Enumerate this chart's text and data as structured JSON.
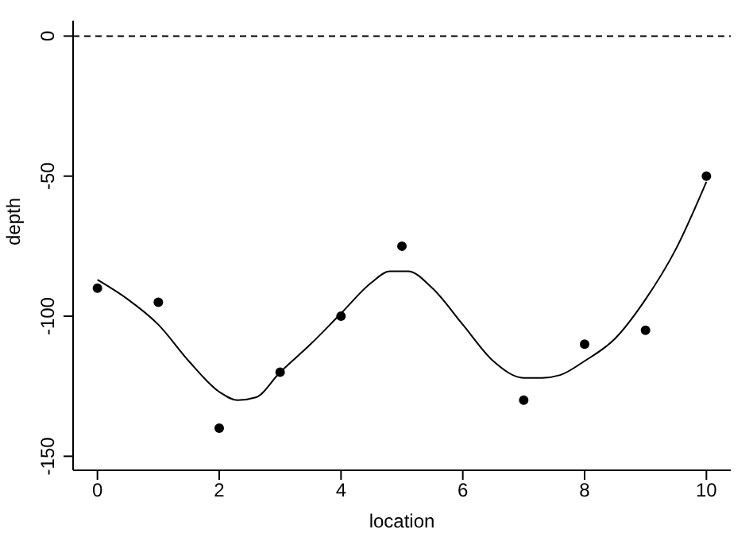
{
  "chart_data": {
    "type": "scatter",
    "xlabel": "location",
    "ylabel": "depth",
    "xlim": [
      -0.4,
      10.4
    ],
    "ylim": [
      -155,
      5.5
    ],
    "xticks": [
      0,
      2,
      4,
      6,
      8,
      10
    ],
    "yticks": [
      -150,
      -100,
      -50,
      0
    ],
    "grid": false,
    "legend": false,
    "marker": "circle",
    "series": [
      {
        "color": "#000000",
        "x": [
          0,
          1,
          2,
          3,
          4,
          5,
          7,
          8,
          9,
          10
        ],
        "values": [
          -90,
          -95,
          -140,
          -120,
          -100,
          -75,
          -130,
          -110,
          -105,
          -50
        ]
      },
      {
        "type": "line",
        "color": "#000000",
        "marker": "none",
        "x": [
          0,
          0.5,
          1,
          1.5,
          2,
          2.3,
          2.6,
          3,
          3.5,
          4,
          4.5,
          4.8,
          5.1,
          5.5,
          6,
          6.5,
          7,
          7.3,
          7.6,
          8,
          8.5,
          9,
          9.5,
          10
        ],
        "values": [
          -87,
          -94,
          -103,
          -116,
          -127,
          -130,
          -129,
          -120,
          -110,
          -99,
          -88,
          -84,
          -84,
          -90,
          -103,
          -116,
          -122,
          -122,
          -121,
          -116,
          -108,
          -94,
          -76,
          -52
        ]
      }
    ],
    "ref_lines": [
      {
        "axis": "y",
        "value": 0,
        "color": "#000000",
        "line_style": "dashed"
      }
    ]
  }
}
